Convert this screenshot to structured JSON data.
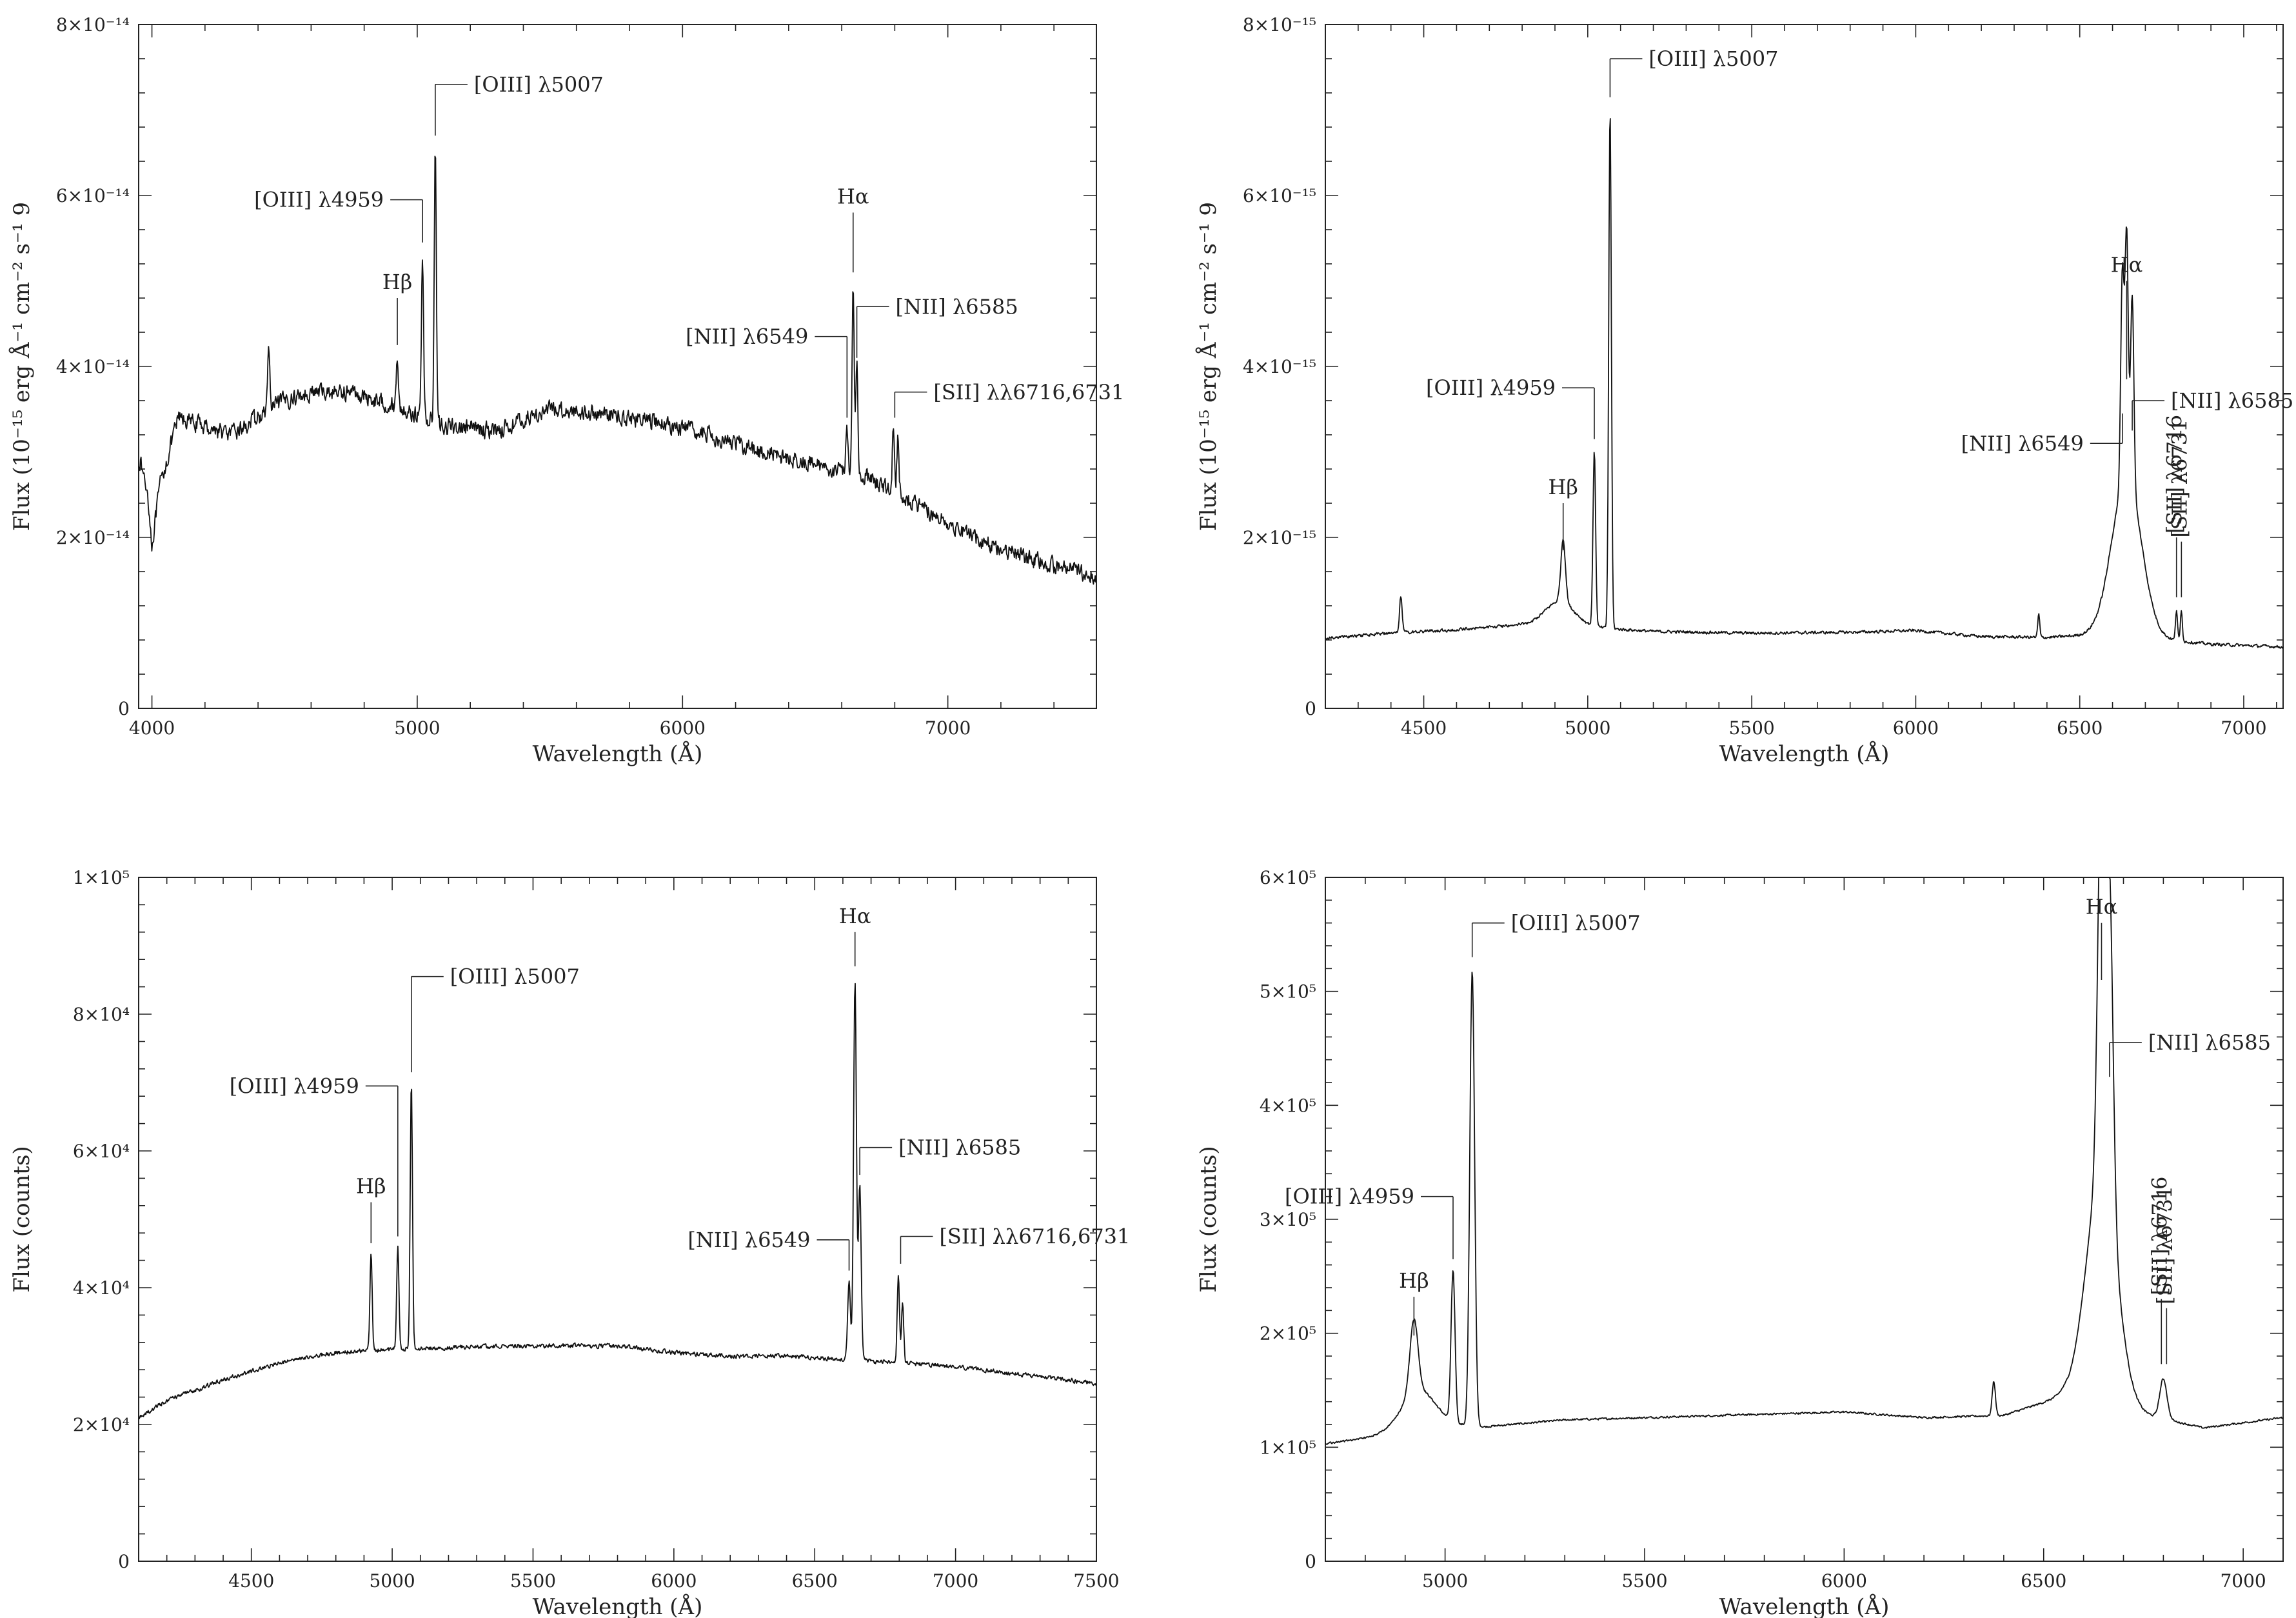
{
  "figure": {
    "panels": 4
  },
  "chart_data": [
    {
      "type": "line",
      "title": "",
      "xlabel": "Wavelength (Å)",
      "ylabel": "Flux (10⁻¹⁵ erg Å⁻¹ cm⁻² s⁻¹ 9",
      "xlim": [
        3950,
        7560
      ],
      "ylim": [
        0,
        8e-14
      ],
      "x_ticks": [
        4000,
        5000,
        6000,
        7000
      ],
      "x_tick_labels": [
        "4000",
        "5000",
        "6000",
        "7000"
      ],
      "y_ticks": [
        0,
        2e-14,
        4e-14,
        6e-14,
        8e-14
      ],
      "y_tick_labels": [
        "0",
        "2×10⁻¹⁴",
        "4×10⁻¹⁴",
        "6×10⁻¹⁴",
        "8×10⁻¹⁴"
      ],
      "grid": false,
      "noise_amplitude": 1.4e-15,
      "continuum": [
        [
          3955,
          2.9e-14
        ],
        [
          3985,
          2.5e-14
        ],
        [
          4000,
          1.9e-14
        ],
        [
          4030,
          2.6e-14
        ],
        [
          4100,
          3.4e-14
        ],
        [
          4200,
          3.3e-14
        ],
        [
          4300,
          3.2e-14
        ],
        [
          4400,
          3.4e-14
        ],
        [
          4500,
          3.6e-14
        ],
        [
          4600,
          3.7e-14
        ],
        [
          4750,
          3.7e-14
        ],
        [
          4900,
          3.55e-14
        ],
        [
          5100,
          3.3e-14
        ],
        [
          5300,
          3.25e-14
        ],
        [
          5500,
          3.5e-14
        ],
        [
          5700,
          3.45e-14
        ],
        [
          5900,
          3.35e-14
        ],
        [
          6100,
          3.2e-14
        ],
        [
          6300,
          3e-14
        ],
        [
          6500,
          2.85e-14
        ],
        [
          6700,
          2.7e-14
        ],
        [
          6900,
          2.35e-14
        ],
        [
          7100,
          2e-14
        ],
        [
          7300,
          1.75e-14
        ],
        [
          7550,
          1.55e-14
        ]
      ],
      "emission_lines": [
        {
          "x": 4440,
          "peak": 4.25e-14,
          "width": 4
        },
        {
          "x": 4925,
          "peak": 4.1e-14,
          "width": 4
        },
        {
          "x": 5020,
          "peak": 5.3e-14,
          "width": 4
        },
        {
          "x": 5068,
          "peak": 6.6e-14,
          "width": 4
        },
        {
          "x": 6620,
          "peak": 3.3e-14,
          "width": 4
        },
        {
          "x": 6643,
          "peak": 5e-14,
          "width": 4
        },
        {
          "x": 6657,
          "peak": 4e-14,
          "width": 4
        },
        {
          "x": 6795,
          "peak": 3.3e-14,
          "width": 4
        },
        {
          "x": 6812,
          "peak": 3.2e-14,
          "width": 4
        }
      ],
      "annotations": [
        {
          "text": "[OIII] λ5007",
          "x": 5068,
          "y_tip": 6.7e-14,
          "y_top": 7.3e-14,
          "label_side": "right"
        },
        {
          "text": "[OIII] λ4959",
          "x": 5020,
          "y_tip": 5.45e-14,
          "y_top": 5.95e-14,
          "label_side": "left"
        },
        {
          "text": "Hβ",
          "x": 4925,
          "y_tip": 4.25e-14,
          "y_top": 4.8e-14,
          "label_side": "above"
        },
        {
          "text": "Hα",
          "x": 6643,
          "y_tip": 5.1e-14,
          "y_top": 5.8e-14,
          "label_side": "above"
        },
        {
          "text": "[NII] λ6585",
          "x": 6657,
          "y_tip": 4.1e-14,
          "y_top": 4.7e-14,
          "label_side": "right"
        },
        {
          "text": "[NII] λ6549",
          "x": 6620,
          "y_tip": 3.4e-14,
          "y_top": 4.35e-14,
          "label_side": "left"
        },
        {
          "text": "[SII] λλ6716,6731",
          "x": 6800,
          "y_tip": 3.4e-14,
          "y_top": 3.7e-14,
          "label_side": "right"
        }
      ]
    },
    {
      "type": "line",
      "title": "",
      "xlabel": "Wavelength (Å)",
      "ylabel": "Flux (10⁻¹⁵ erg Å⁻¹ cm⁻² s⁻¹ 9",
      "xlim": [
        4200,
        7120
      ],
      "ylim": [
        0,
        8e-15
      ],
      "x_ticks": [
        4500,
        5000,
        5500,
        6000,
        6500,
        7000
      ],
      "x_tick_labels": [
        "4500",
        "5000",
        "5500",
        "6000",
        "6500",
        "7000"
      ],
      "y_ticks": [
        0,
        2e-15,
        4e-15,
        6e-15,
        8e-15
      ],
      "y_tick_labels": [
        "0",
        "2×10⁻¹⁵",
        "4×10⁻¹⁵",
        "6×10⁻¹⁵",
        "8×10⁻¹⁵"
      ],
      "grid": false,
      "noise_amplitude": 2.5e-17,
      "continuum": [
        [
          4200,
          8.2e-16
        ],
        [
          4400,
          8.8e-16
        ],
        [
          4600,
          9.2e-16
        ],
        [
          4800,
          9.8e-16
        ],
        [
          5000,
          9.5e-16
        ],
        [
          5200,
          9e-16
        ],
        [
          5500,
          8.8e-16
        ],
        [
          5800,
          8.9e-16
        ],
        [
          6000,
          9.1e-16
        ],
        [
          6200,
          8.4e-16
        ],
        [
          6400,
          8.3e-16
        ],
        [
          6540,
          8.6e-16
        ],
        [
          6800,
          7.9e-16
        ],
        [
          6900,
          7.5e-16
        ],
        [
          7120,
          7.2e-16
        ]
      ],
      "emission_lines": [
        {
          "x": 4925,
          "peak": 1.7e-15,
          "width": 7
        },
        {
          "x": 4915,
          "peak": 1.25e-15,
          "width": 45
        },
        {
          "x": 5020,
          "peak": 3e-15,
          "width": 4
        },
        {
          "x": 5068,
          "peak": 7e-15,
          "width": 4
        },
        {
          "x": 4430,
          "peak": 1.3e-15,
          "width": 4
        },
        {
          "x": 6375,
          "peak": 1.1e-15,
          "width": 3
        },
        {
          "x": 6643,
          "peak": 2.7e-15,
          "width": 45
        },
        {
          "x": 6630,
          "peak": 3.3e-15,
          "width": 5
        },
        {
          "x": 6643,
          "peak": 3.7e-15,
          "width": 5
        },
        {
          "x": 6660,
          "peak": 3.1e-15,
          "width": 5
        },
        {
          "x": 6795,
          "peak": 1.15e-15,
          "width": 3
        },
        {
          "x": 6810,
          "peak": 1.15e-15,
          "width": 3
        }
      ],
      "annotations": [
        {
          "text": "[OIII] λ5007",
          "x": 5068,
          "y_tip": 7.15e-15,
          "y_top": 7.6e-15,
          "label_side": "right"
        },
        {
          "text": "[OIII] λ4959",
          "x": 5020,
          "y_tip": 3.15e-15,
          "y_top": 3.75e-15,
          "label_side": "left"
        },
        {
          "text": "Hβ",
          "x": 4925,
          "y_tip": 1.85e-15,
          "y_top": 2.4e-15,
          "label_side": "above"
        },
        {
          "text": "Hα",
          "x": 6643,
          "y_tip": 3.85e-15,
          "y_top": 5e-15,
          "label_side": "above"
        },
        {
          "text": "[NII] λ6585",
          "x": 6660,
          "y_tip": 3.25e-15,
          "y_top": 3.6e-15,
          "label_side": "right"
        },
        {
          "text": "[NII] λ6549",
          "x": 6630,
          "y_tip": 3.45e-15,
          "y_top": 3.1e-15,
          "label_side": "left"
        },
        {
          "text": "[SII] λ6716",
          "x": 6795,
          "y_tip": 1.3e-15,
          "y_top": 2e-15,
          "label_side": "vertical"
        },
        {
          "text": "[SII] λ6731",
          "x": 6810,
          "y_tip": 1.3e-15,
          "y_top": 1.95e-15,
          "label_side": "vertical"
        }
      ]
    },
    {
      "type": "line",
      "title": "",
      "xlabel": "Wavelength (Å)",
      "ylabel": "Flux (counts)",
      "xlim": [
        4100,
        7500
      ],
      "ylim": [
        0,
        100000
      ],
      "x_ticks": [
        4500,
        5000,
        5500,
        6000,
        6500,
        7000,
        7500
      ],
      "x_tick_labels": [
        "4500",
        "5000",
        "5500",
        "6000",
        "6500",
        "7000",
        "7500"
      ],
      "y_ticks": [
        0,
        20000,
        40000,
        60000,
        80000,
        100000
      ],
      "y_tick_labels": [
        "0",
        "2×10⁴",
        "4×10⁴",
        "6×10⁴",
        "8×10⁴",
        "1×10⁵"
      ],
      "grid": false,
      "noise_amplitude": 450,
      "continuum": [
        [
          4100,
          21000
        ],
        [
          4200,
          23500
        ],
        [
          4400,
          26500
        ],
        [
          4600,
          29000
        ],
        [
          4800,
          30500
        ],
        [
          5000,
          31000
        ],
        [
          5400,
          31500
        ],
        [
          5800,
          31500
        ],
        [
          6000,
          30500
        ],
        [
          6200,
          30000
        ],
        [
          6400,
          30000
        ],
        [
          6600,
          29500
        ],
        [
          6800,
          29000
        ],
        [
          7000,
          28500
        ],
        [
          7200,
          27500
        ],
        [
          7500,
          26000
        ]
      ],
      "emission_lines": [
        {
          "x": 4925,
          "peak": 45000,
          "width": 4
        },
        {
          "x": 5020,
          "peak": 46000,
          "width": 4
        },
        {
          "x": 5068,
          "peak": 70000,
          "width": 4
        },
        {
          "x": 6622,
          "peak": 41000,
          "width": 5
        },
        {
          "x": 6643,
          "peak": 85000,
          "width": 5
        },
        {
          "x": 6660,
          "peak": 55000,
          "width": 5
        },
        {
          "x": 6797,
          "peak": 42000,
          "width": 4
        },
        {
          "x": 6812,
          "peak": 38000,
          "width": 4
        }
      ],
      "annotations": [
        {
          "text": "[OIII] λ5007",
          "x": 5068,
          "y_tip": 71500,
          "y_top": 85500,
          "label_side": "right"
        },
        {
          "text": "[OIII] λ4959",
          "x": 5020,
          "y_tip": 47500,
          "y_top": 69500,
          "label_side": "left"
        },
        {
          "text": "Hβ",
          "x": 4925,
          "y_tip": 46500,
          "y_top": 52500,
          "label_side": "above"
        },
        {
          "text": "Hα",
          "x": 6643,
          "y_tip": 87000,
          "y_top": 92000,
          "label_side": "above"
        },
        {
          "text": "[NII] λ6585",
          "x": 6660,
          "y_tip": 56500,
          "y_top": 60500,
          "label_side": "right"
        },
        {
          "text": "[NII] λ6549",
          "x": 6622,
          "y_tip": 42500,
          "y_top": 47000,
          "label_side": "left"
        },
        {
          "text": "[SII] λλ6716,6731",
          "x": 6805,
          "y_tip": 43500,
          "y_top": 47500,
          "label_side": "right"
        }
      ]
    },
    {
      "type": "line",
      "title": "",
      "xlabel": "Wavelength (Å)",
      "ylabel": "Flux (counts)",
      "xlim": [
        4700,
        7100
      ],
      "ylim": [
        0,
        600000
      ],
      "x_ticks": [
        5000,
        5500,
        6000,
        6500,
        7000
      ],
      "x_tick_labels": [
        "5000",
        "5500",
        "6000",
        "6500",
        "7000"
      ],
      "y_ticks": [
        0,
        100000,
        200000,
        300000,
        400000,
        500000,
        600000
      ],
      "y_tick_labels": [
        "0",
        "1×10⁵",
        "2×10⁵",
        "3×10⁵",
        "4×10⁵",
        "5×10⁵",
        "6×10⁵"
      ],
      "grid": false,
      "noise_amplitude": 1200,
      "continuum": [
        [
          4700,
          103000
        ],
        [
          4800,
          108000
        ],
        [
          4900,
          118000
        ],
        [
          5000,
          120000
        ],
        [
          5100,
          118000
        ],
        [
          5300,
          124000
        ],
        [
          5500,
          126000
        ],
        [
          5800,
          129000
        ],
        [
          6000,
          131000
        ],
        [
          6200,
          126000
        ],
        [
          6400,
          128000
        ],
        [
          6550,
          145000
        ],
        [
          6800,
          125000
        ],
        [
          6900,
          117000
        ],
        [
          7100,
          126000
        ]
      ],
      "emission_lines": [
        {
          "x": 4922,
          "peak": 183000,
          "width": 10
        },
        {
          "x": 4935,
          "peak": 150000,
          "width": 40
        },
        {
          "x": 5020,
          "peak": 252000,
          "width": 5
        },
        {
          "x": 5068,
          "peak": 518000,
          "width": 6
        },
        {
          "x": 6375,
          "peak": 158000,
          "width": 4
        },
        {
          "x": 6645,
          "peak": 340000,
          "width": 38
        },
        {
          "x": 6645,
          "peak": 495000,
          "width": 9
        },
        {
          "x": 6665,
          "peak": 410000,
          "width": 9
        },
        {
          "x": 6800,
          "peak": 160000,
          "width": 9
        }
      ],
      "annotations": [
        {
          "text": "[OIII] λ5007",
          "x": 5068,
          "y_tip": 530000,
          "y_top": 560000,
          "label_side": "right"
        },
        {
          "text": "[OIII] λ4959",
          "x": 5020,
          "y_tip": 265000,
          "y_top": 320000,
          "label_side": "left"
        },
        {
          "text": "Hβ",
          "x": 4922,
          "y_tip": 198000,
          "y_top": 232000,
          "label_side": "above"
        },
        {
          "text": "Hα",
          "x": 6645,
          "y_tip": 510000,
          "y_top": 560000,
          "label_side": "above"
        },
        {
          "text": "[NII] λ6585",
          "x": 6665,
          "y_tip": 425000,
          "y_top": 455000,
          "label_side": "right"
        },
        {
          "text": "[SII] λ6716",
          "x": 6795,
          "y_tip": 173000,
          "y_top": 230000,
          "label_side": "vertical"
        },
        {
          "text": "[SII] λ6731",
          "x": 6808,
          "y_tip": 173000,
          "y_top": 222000,
          "label_side": "vertical"
        }
      ]
    }
  ]
}
